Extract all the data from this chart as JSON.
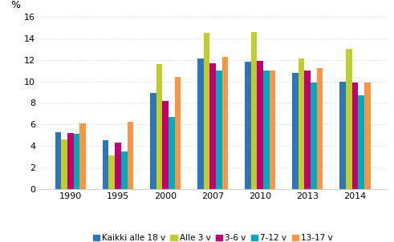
{
  "years": [
    "1990",
    "1995",
    "2000",
    "2007",
    "2010",
    "2013",
    "2014"
  ],
  "series": {
    "Kaikki alle 18 v": [
      5.3,
      4.5,
      8.9,
      12.1,
      11.8,
      10.8,
      10.0
    ],
    "Alle 3 v": [
      4.6,
      3.1,
      11.6,
      14.5,
      14.6,
      12.1,
      13.0
    ],
    "3-6 v": [
      5.2,
      4.3,
      8.2,
      11.7,
      11.9,
      11.0,
      9.9
    ],
    "7-12 v": [
      5.1,
      3.5,
      6.7,
      11.0,
      11.0,
      9.9,
      8.7
    ],
    "13-17 v": [
      6.1,
      6.2,
      10.4,
      12.3,
      11.0,
      11.2,
      9.9
    ]
  },
  "colors": {
    "Kaikki alle 18 v": "#2E75B6",
    "Alle 3 v": "#BFCE2D",
    "3-6 v": "#C00070",
    "7-12 v": "#00AABB",
    "13-17 v": "#F79646"
  },
  "ylabel": "%",
  "ylim": [
    0,
    16
  ],
  "yticks": [
    0,
    2,
    4,
    6,
    8,
    10,
    12,
    14,
    16
  ],
  "bar_width": 0.13,
  "background_color": "#ffffff",
  "grid_color": "#cccccc",
  "legend_entries": [
    "Kaikki alle 18 v",
    "Alle 3 v",
    "3-6 v",
    "7-12 v",
    "13-17 v"
  ]
}
